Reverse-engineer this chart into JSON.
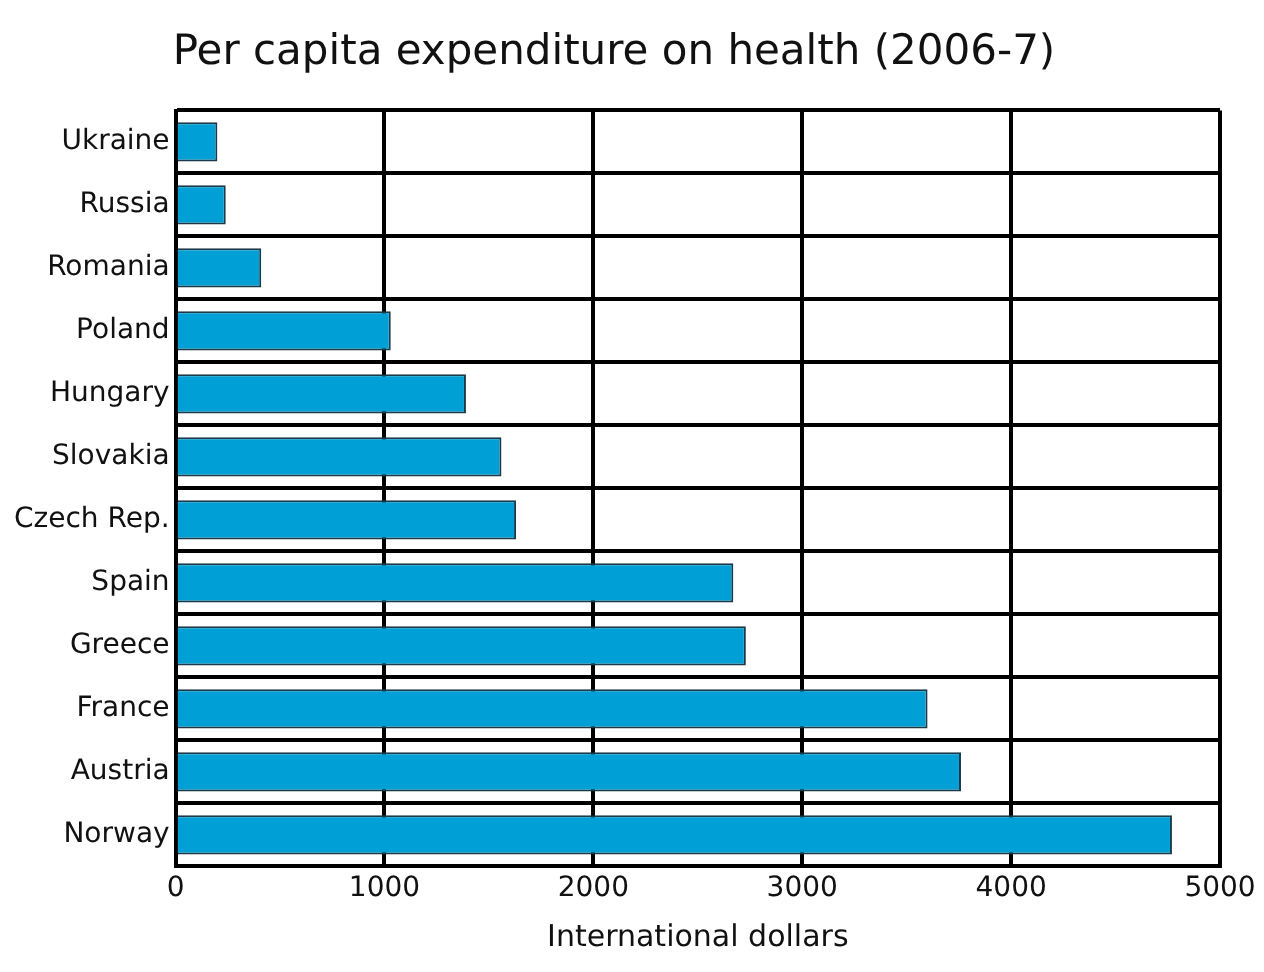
{
  "chart_data": {
    "type": "bar",
    "orientation": "horizontal",
    "title": "Per capita expenditure on health (2006-7)",
    "xlabel": "International dollars",
    "categories": [
      "Ukraine",
      "Russia",
      "Romania",
      "Poland",
      "Hungary",
      "Slovakia",
      "Czech Rep.",
      "Spain",
      "Greece",
      "France",
      "Austria",
      "Norway"
    ],
    "values": [
      200,
      240,
      410,
      1030,
      1390,
      1560,
      1630,
      2670,
      2730,
      3600,
      3760,
      4770
    ],
    "color": "#00a0d6",
    "xlim": [
      0,
      5000
    ],
    "xticks": [
      0,
      1000,
      2000,
      3000,
      4000,
      5000
    ],
    "grid": true
  }
}
